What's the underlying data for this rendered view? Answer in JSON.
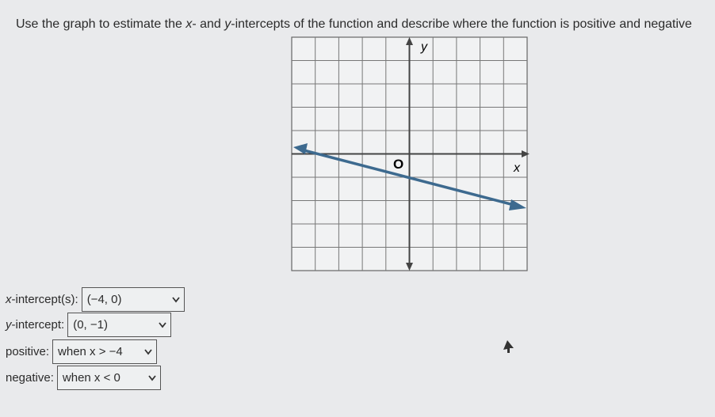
{
  "question": [
    "Use the graph to estimate the ",
    "x",
    "- and ",
    "y",
    "-intercepts of the function and describe where the function is positive and negative"
  ],
  "graph": {
    "y_label": "y",
    "x_label": "x",
    "origin_label": "O"
  },
  "answers": [
    {
      "label": [
        "x",
        "-intercept(s):"
      ],
      "selected": "(−4, 0)"
    },
    {
      "label": [
        "y",
        "-intercept:"
      ],
      "selected": "(0, −1)"
    },
    {
      "label": [
        "positive:"
      ],
      "selected": "when x > −4"
    },
    {
      "label": [
        "negative:"
      ],
      "selected": "when x < 0"
    }
  ]
}
